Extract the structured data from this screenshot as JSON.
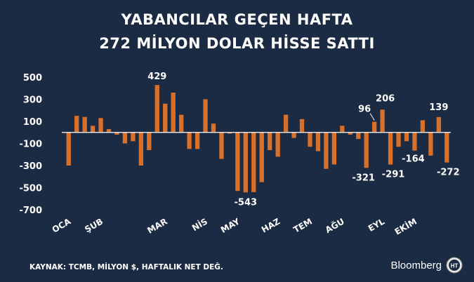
{
  "header": {
    "title_line1": "YABANCILAR GEÇEN HAFTA",
    "title_line2": "272 MİLYON DOLAR HİSSE SATTI"
  },
  "footer": {
    "source": "KAYNAK: TCMB, MİLYON $, HAFTALIK NET DEĞ.",
    "brand": "Bloomberg",
    "brand_badge": "HT"
  },
  "colors": {
    "background": "#1c2b44",
    "bar": "#d9702a",
    "text": "#ffffff",
    "zero_line": "#ffffff"
  },
  "chart_data": {
    "type": "bar",
    "title": "YABANCILAR GEÇEN HAFTA 272 MİLYON DOLAR HİSSE SATTI",
    "ylim": [
      -700,
      500
    ],
    "y_ticks": [
      500,
      300,
      100,
      -100,
      -300,
      -500,
      -700
    ],
    "x_month_labels": [
      "OCA",
      "ŞUB",
      "MAR",
      "NİS",
      "MAY",
      "HAZ",
      "TEM",
      "AĞU",
      "EYL",
      "EKİM"
    ],
    "month_start_week": [
      0,
      4,
      12,
      17,
      21,
      26,
      30,
      34,
      39,
      43
    ],
    "values": [
      -300,
      150,
      140,
      60,
      130,
      30,
      -20,
      -100,
      -80,
      -300,
      -160,
      429,
      260,
      360,
      160,
      -150,
      -150,
      300,
      80,
      -240,
      -10,
      -530,
      -543,
      -540,
      -450,
      -160,
      -220,
      160,
      -50,
      120,
      -130,
      -170,
      -330,
      -290,
      60,
      -20,
      -60,
      -321,
      96,
      206,
      -291,
      -130,
      -80,
      -164,
      110,
      -210,
      139,
      -272
    ],
    "annotations": [
      {
        "index": 11,
        "text": "429"
      },
      {
        "index": 22,
        "text": "-543"
      },
      {
        "index": 37,
        "text": "-321"
      },
      {
        "index": 38,
        "text": "96"
      },
      {
        "index": 39,
        "text": "206"
      },
      {
        "index": 40,
        "text": "-291"
      },
      {
        "index": 43,
        "text": "-164"
      },
      {
        "index": 46,
        "text": "139"
      },
      {
        "index": 47,
        "text": "-272"
      }
    ],
    "grid": false,
    "legend": "none"
  }
}
